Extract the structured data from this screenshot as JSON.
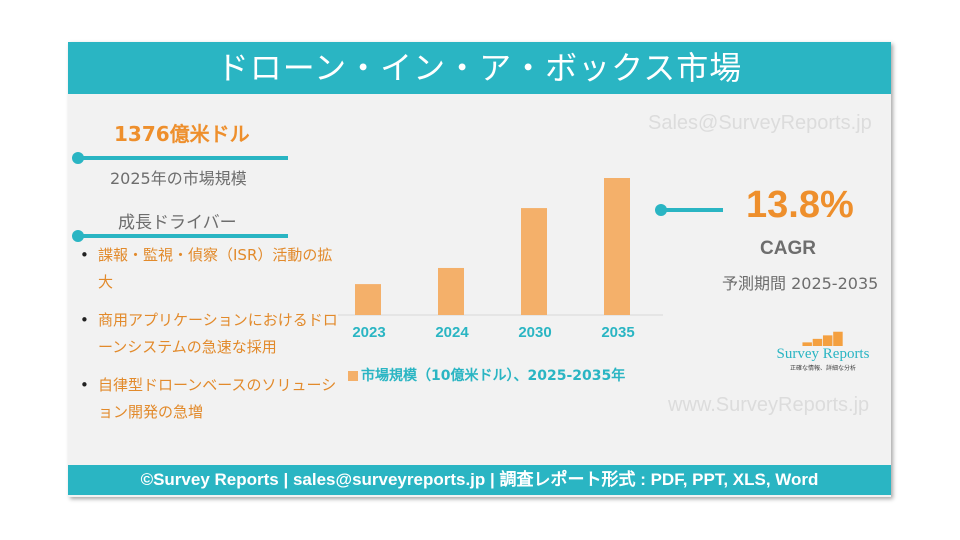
{
  "header": {
    "title": "ドローン・イン・ア・ボックス市場"
  },
  "watermarks": {
    "top": "Sales@SurveyReports.jp",
    "bottom": "www.SurveyReports.jp"
  },
  "market_size": {
    "value": "1376億米ドル",
    "label": "2025年の市場規模"
  },
  "drivers": {
    "title": "成長ドライバー",
    "items": [
      "諜報・監視・偵察（ISR）活動の拡大",
      "商用アプリケーションにおけるドローンシステムの急速な採用",
      "自律型ドローンベースのソリューション開発の急増"
    ]
  },
  "cagr": {
    "value": "13.8%",
    "label": "CAGR",
    "period": "予測期間 2025-2035"
  },
  "logo": {
    "name": "Survey Reports",
    "tagline": "正確な情報、詳細な分析"
  },
  "footer": {
    "text": "©Survey Reports | sales@surveyreports.jp | 調査レポート形式 : PDF, PPT, XLS, Word"
  },
  "colors": {
    "teal": "#2ab5c3",
    "orange": "#f4b06a",
    "accent": "#ee8f2c"
  },
  "chart_data": {
    "type": "bar",
    "categories": [
      "2023",
      "2024",
      "2030",
      "2035"
    ],
    "series": [
      {
        "name": "市場規模（10億米ドル）、2025-2035年",
        "values": [
          113,
          172,
          391,
          501
        ]
      }
    ],
    "grid": false,
    "legend": "bottom-left"
  }
}
